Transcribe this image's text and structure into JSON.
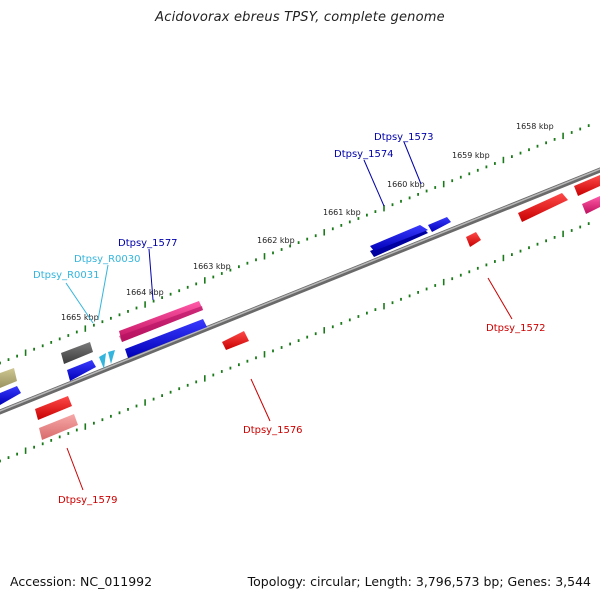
{
  "title": "Acidovorax ebreus TPSY, complete genome",
  "footer": {
    "accession": "Accession: NC_011992",
    "summary": "Topology: circular; Length: 3,796,573 bp; Genes: 3,544"
  },
  "colors": {
    "backbone": "#808080",
    "tick": "#1a7a1a",
    "label_blue": "#0000aa",
    "label_cyan": "#33b5dd",
    "label_red": "#cc0000",
    "gene_blue": "#0a0adc",
    "gene_red": "#ee1111",
    "gene_pink": "#e0207a",
    "gene_lightred": "#e88080",
    "gene_gray": "#5a5a5a",
    "gene_olive": "#b8b07a",
    "gene_cyan": "#33b5dd"
  },
  "kbp_labels": [
    "1658 kbp",
    "1659 kbp",
    "1660 kbp",
    "1661 kbp",
    "1662 kbp",
    "1663 kbp",
    "1664 kbp",
    "1665 kbp"
  ],
  "gene_labels": {
    "dtpsy_1573": "Dtpsy_1573",
    "dtpsy_1574": "Dtpsy_1574",
    "dtpsy_1577": "Dtpsy_1577",
    "dtpsy_r0030": "Dtpsy_R0030",
    "dtpsy_r0031": "Dtpsy_R0031",
    "dtpsy_1572": "Dtpsy_1572",
    "dtpsy_1576": "Dtpsy_1576",
    "dtpsy_1579": "Dtpsy_1579"
  }
}
